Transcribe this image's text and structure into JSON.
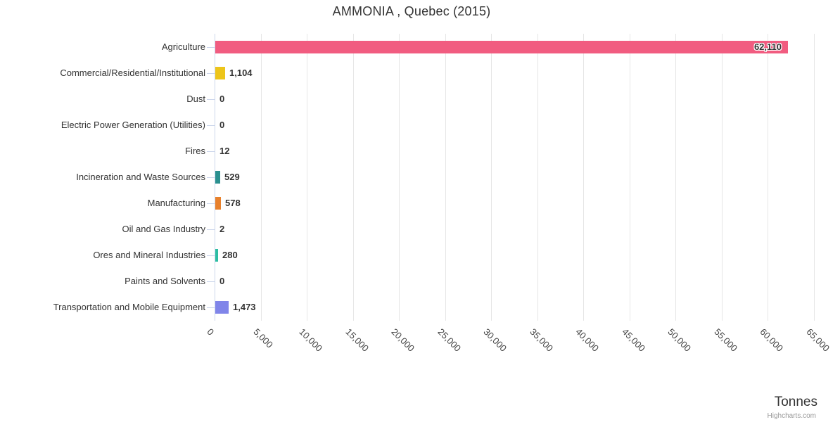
{
  "chart": {
    "title": "AMMONIA , Quebec (2015)",
    "axis_title": "Tonnes",
    "credits": "Highcharts.com"
  },
  "chart_data": {
    "type": "bar",
    "orientation": "horizontal",
    "title": "AMMONIA , Quebec (2015)",
    "xlabel": "Tonnes",
    "ylabel": "",
    "xlim": [
      0,
      65000
    ],
    "tick_interval": 5000,
    "grid": true,
    "legend": false,
    "categories": [
      "Agriculture",
      "Commercial/Residential/Institutional",
      "Dust",
      "Electric Power Generation (Utilities)",
      "Fires",
      "Incineration and Waste Sources",
      "Manufacturing",
      "Oil and Gas Industry",
      "Ores and Mineral Industries",
      "Paints and Solvents",
      "Transportation and Mobile Equipment"
    ],
    "values": [
      62110,
      1104,
      0,
      0,
      12,
      529,
      578,
      2,
      280,
      0,
      1473
    ],
    "value_labels": [
      "62,110",
      "1,104",
      "0",
      "0",
      "12",
      "529",
      "578",
      "2",
      "280",
      "0",
      "1,473"
    ],
    "bar_colors": [
      "#F15C80",
      "#EDC51A",
      null,
      null,
      null,
      "#2B908F",
      "#E8812C",
      null,
      "#2DBDA3",
      null,
      "#8085E9"
    ],
    "x_tick_labels": [
      "0",
      "5,000",
      "10,000",
      "15,000",
      "20,000",
      "25,000",
      "30,000",
      "35,000",
      "40,000",
      "45,000",
      "50,000",
      "55,000",
      "60,000",
      "65,000"
    ],
    "colors": {
      "grid": "#e6e6e6",
      "axis_line": "#ccd6eb",
      "label_text": "#333333"
    }
  }
}
